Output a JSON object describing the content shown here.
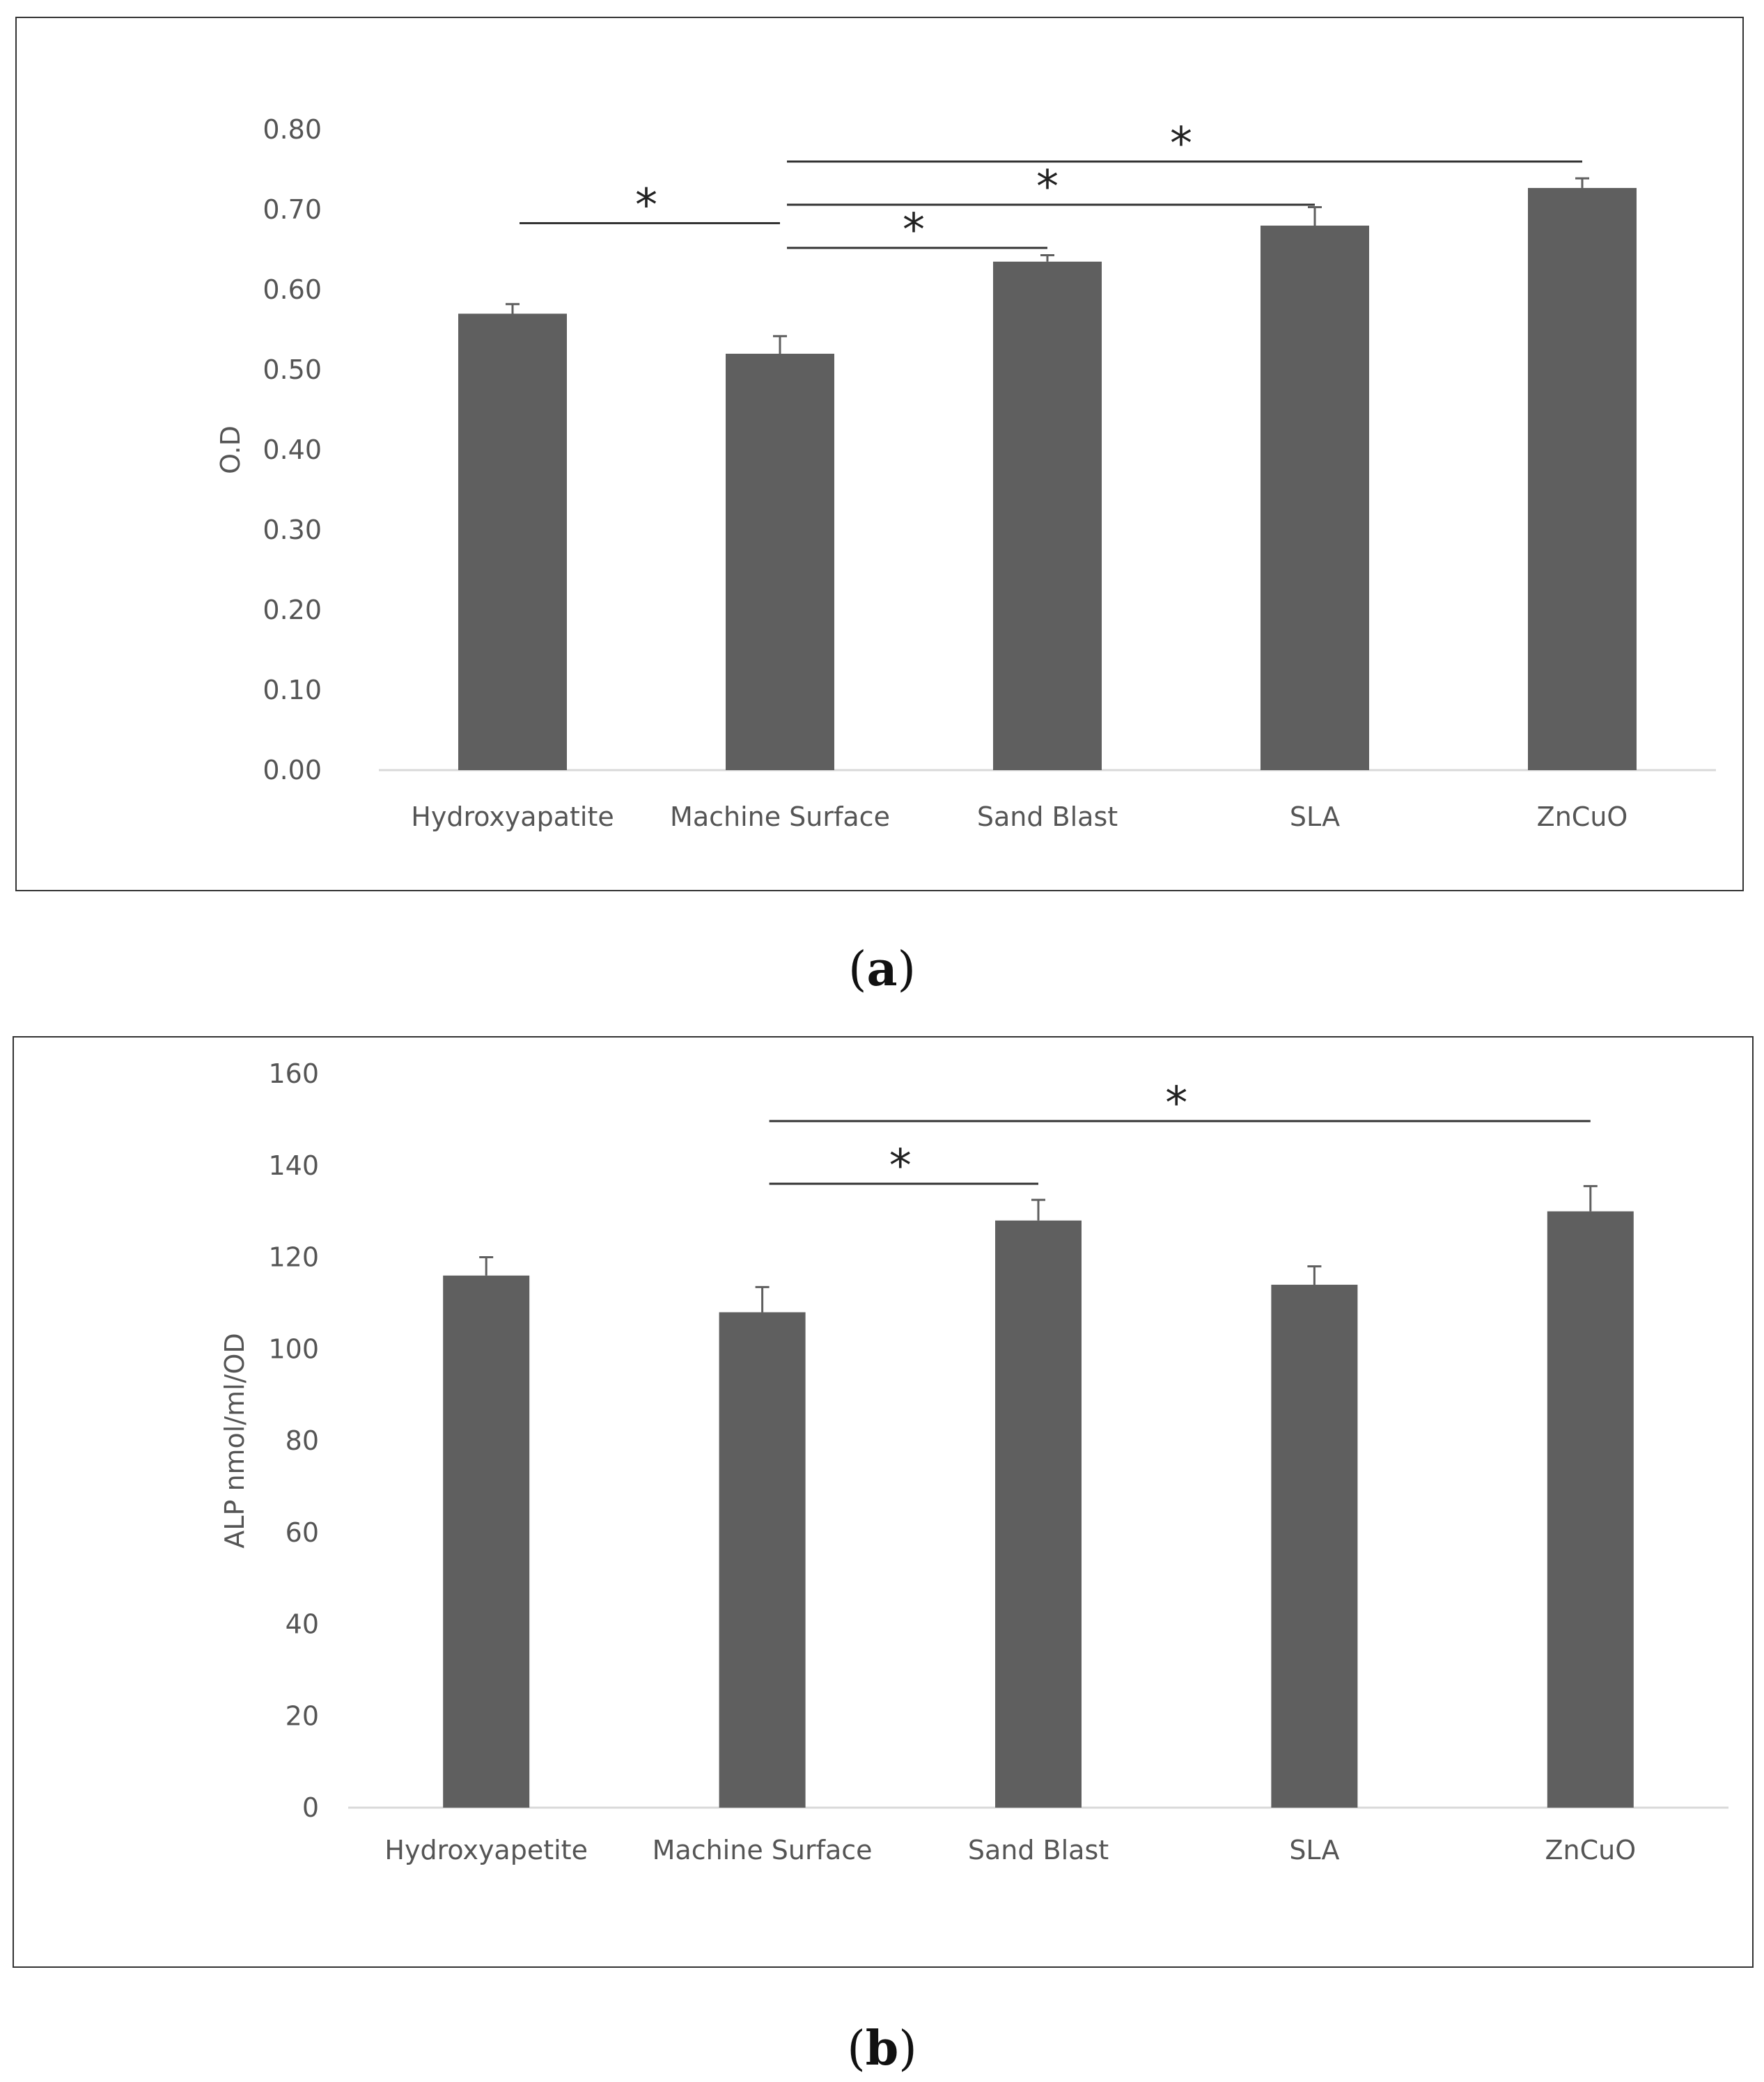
{
  "colors": {
    "bar": "#5f5f5f",
    "axis": "#d9d9d9",
    "bracket": "#333333",
    "text": "#555555"
  },
  "chart_data": [
    {
      "panel": "a",
      "caption": "a",
      "type": "bar",
      "title": "",
      "xlabel": "",
      "ylabel": "O.D",
      "ylim": [
        0,
        0.8
      ],
      "yticks": [
        0,
        0.1,
        0.2,
        0.3,
        0.4,
        0.5,
        0.6,
        0.7,
        0.8
      ],
      "ytick_labels": [
        "0.00",
        "0.10",
        "0.20",
        "0.30",
        "0.40",
        "0.50",
        "0.60",
        "0.70",
        "0.80"
      ],
      "categories": [
        "Hydroxyapatite",
        "Machine Surface",
        "Sand Blast",
        "SLA",
        "ZnCuO"
      ],
      "values": [
        0.57,
        0.52,
        0.635,
        0.68,
        0.727
      ],
      "errors": [
        0.012,
        0.022,
        0.008,
        0.023,
        0.012
      ],
      "grid": false,
      "significance": [
        {
          "from": 0,
          "to": 1,
          "label": "*"
        },
        {
          "from": 1,
          "to": 2,
          "label": "*"
        },
        {
          "from": 1,
          "to": 3,
          "label": "*"
        },
        {
          "from": 1,
          "to": 4,
          "label": "*"
        }
      ]
    },
    {
      "panel": "b",
      "caption": "b",
      "type": "bar",
      "title": "",
      "xlabel": "",
      "ylabel": "ALP nmol/ml/OD",
      "ylim": [
        0,
        160
      ],
      "yticks": [
        0,
        20,
        40,
        60,
        80,
        100,
        120,
        140,
        160
      ],
      "ytick_labels": [
        "0",
        "20",
        "40",
        "60",
        "80",
        "100",
        "120",
        "140",
        "160"
      ],
      "categories": [
        "Hydroxyapetite",
        "Machine Surface",
        "Sand Blast",
        "SLA",
        "ZnCuO"
      ],
      "values": [
        116,
        108,
        128,
        114,
        130
      ],
      "errors": [
        4,
        5.5,
        4.5,
        4,
        5.5
      ],
      "grid": false,
      "significance": [
        {
          "from": 1,
          "to": 2,
          "label": "*"
        },
        {
          "from": 1,
          "to": 4,
          "label": "*"
        }
      ]
    }
  ]
}
